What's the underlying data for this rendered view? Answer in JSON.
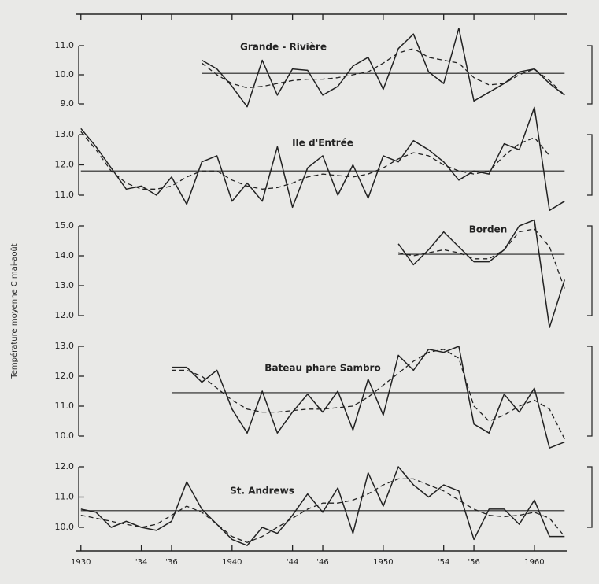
{
  "chart_data": [
    {
      "type": "line",
      "title": "Grande - Rivière",
      "xlim": [
        1929.7,
        1962.4
      ],
      "ylim": [
        9,
        11
      ],
      "yticks": [
        {
          "value": 9,
          "label": "9.0"
        },
        {
          "value": 10,
          "label": "10.0"
        },
        {
          "value": 11,
          "label": "11.0"
        }
      ],
      "x": [
        1938,
        1939,
        1940,
        1941,
        1942,
        1943,
        1944,
        1945,
        1946,
        1947,
        1948,
        1949,
        1950,
        1951,
        1952,
        1953,
        1954,
        1955,
        1956,
        1957,
        1958,
        1959,
        1960,
        1961,
        1962
      ],
      "series": [
        {
          "style": "solid",
          "color": "#222222",
          "values": [
            10.5,
            10.2,
            9.6,
            8.9,
            10.5,
            9.3,
            10.2,
            10.15,
            9.3,
            9.6,
            10.3,
            10.6,
            9.5,
            10.9,
            11.4,
            10.1,
            9.7,
            11.6,
            9.1,
            9.4,
            9.7,
            10.1,
            10.2,
            9.7,
            9.3
          ]
        },
        {
          "style": "dashed",
          "color": "#222222",
          "values": [
            10.4,
            10.0,
            9.7,
            9.55,
            9.6,
            9.7,
            9.8,
            9.85,
            9.85,
            9.9,
            10.0,
            10.1,
            10.4,
            10.75,
            10.9,
            10.6,
            10.5,
            10.4,
            9.9,
            9.65,
            9.7,
            10.0,
            10.2,
            9.8,
            9.3
          ]
        }
      ],
      "mean": 10.05
    },
    {
      "type": "line",
      "title": "Ile d'Entrée",
      "xlim": [
        1929.7,
        1962.4
      ],
      "ylim": [
        11,
        13
      ],
      "yticks": [
        {
          "value": 11,
          "label": "11.0"
        },
        {
          "value": 12,
          "label": "12.0"
        },
        {
          "value": 13,
          "label": "13.0"
        }
      ],
      "x": [
        1930,
        1931,
        1932,
        1933,
        1934,
        1935,
        1936,
        1937,
        1938,
        1939,
        1940,
        1941,
        1942,
        1943,
        1944,
        1945,
        1946,
        1947,
        1948,
        1949,
        1950,
        1951,
        1952,
        1953,
        1954,
        1955,
        1956,
        1957,
        1958,
        1959,
        1960,
        1961,
        1962
      ],
      "series": [
        {
          "style": "solid",
          "color": "#222222",
          "values": [
            13.2,
            12.6,
            11.9,
            11.2,
            11.3,
            11.0,
            11.6,
            10.7,
            12.1,
            12.3,
            10.8,
            11.4,
            10.8,
            12.6,
            10.6,
            11.9,
            12.3,
            11.0,
            12.0,
            10.9,
            12.3,
            12.1,
            12.8,
            12.5,
            12.1,
            11.5,
            11.8,
            11.7,
            12.7,
            12.5,
            13.9,
            10.5,
            10.8
          ]
        },
        {
          "style": "dashed",
          "color": "#222222",
          "values": [
            13.1,
            12.5,
            11.8,
            11.4,
            11.2,
            11.2,
            11.3,
            11.6,
            11.8,
            11.8,
            11.5,
            11.3,
            11.2,
            11.25,
            11.4,
            11.6,
            11.7,
            11.65,
            11.6,
            11.7,
            11.9,
            12.2,
            12.4,
            12.3,
            12.0,
            11.8,
            11.7,
            11.8,
            12.3,
            12.7,
            12.9,
            12.3,
            null
          ]
        }
      ],
      "mean": 11.8
    },
    {
      "type": "line",
      "title": "Borden",
      "ylabel": "Température moyenne C mai-août",
      "xlim": [
        1929.7,
        1962.4
      ],
      "ylim": [
        12,
        15
      ],
      "yticks": [
        {
          "value": 12,
          "label": "12.0"
        },
        {
          "value": 13,
          "label": "13.0"
        },
        {
          "value": 14,
          "label": "14.0"
        },
        {
          "value": 15,
          "label": "15.0"
        }
      ],
      "x": [
        1951,
        1952,
        1953,
        1954,
        1955,
        1956,
        1957,
        1958,
        1959,
        1960,
        1961,
        1962
      ],
      "series": [
        {
          "style": "solid",
          "color": "#222222",
          "values": [
            14.4,
            13.7,
            14.2,
            14.8,
            14.3,
            13.8,
            13.8,
            14.2,
            15.0,
            15.2,
            11.6,
            13.2
          ]
        },
        {
          "style": "dashed",
          "color": "#222222",
          "values": [
            14.1,
            14.0,
            14.1,
            14.2,
            14.1,
            13.9,
            13.9,
            14.2,
            14.8,
            14.9,
            14.3,
            12.9
          ]
        }
      ],
      "mean": 14.05
    },
    {
      "type": "line",
      "title": "Bateau phare Sambro",
      "xlim": [
        1929.7,
        1962.4
      ],
      "ylim": [
        10,
        13
      ],
      "yticks": [
        {
          "value": 10,
          "label": "10.0"
        },
        {
          "value": 11,
          "label": "11.0"
        },
        {
          "value": 12,
          "label": "12.0"
        },
        {
          "value": 13,
          "label": "13.0"
        }
      ],
      "x": [
        1936,
        1937,
        1938,
        1939,
        1940,
        1941,
        1942,
        1943,
        1944,
        1945,
        1946,
        1947,
        1948,
        1949,
        1950,
        1951,
        1952,
        1953,
        1954,
        1955,
        1956,
        1957,
        1958,
        1959,
        1960,
        1961,
        1962
      ],
      "series": [
        {
          "style": "solid",
          "color": "#222222",
          "values": [
            12.3,
            12.3,
            11.8,
            12.2,
            10.9,
            10.1,
            11.5,
            10.1,
            10.8,
            11.4,
            10.8,
            11.5,
            10.2,
            11.9,
            10.7,
            12.7,
            12.2,
            12.9,
            12.8,
            13.0,
            10.4,
            10.1,
            11.4,
            10.8,
            11.6,
            9.6,
            9.8
          ]
        },
        {
          "style": "dashed",
          "color": "#222222",
          "values": [
            12.2,
            12.2,
            12.0,
            11.6,
            11.2,
            10.9,
            10.8,
            10.8,
            10.85,
            10.9,
            10.9,
            10.95,
            11.0,
            11.3,
            11.7,
            12.1,
            12.5,
            12.8,
            12.9,
            12.6,
            11.0,
            10.5,
            10.7,
            11.0,
            11.2,
            10.9,
            9.9
          ]
        }
      ],
      "mean": 11.45
    },
    {
      "type": "line",
      "title": "St. Andrews",
      "xlim": [
        1929.7,
        1962.4
      ],
      "ylim": [
        10,
        12
      ],
      "yticks": [
        {
          "value": 10,
          "label": "10.0"
        },
        {
          "value": 11,
          "label": "11.0"
        },
        {
          "value": 12,
          "label": "12.0"
        }
      ],
      "xticks": [
        1930,
        {
          "value": 1934,
          "label": "'34"
        },
        {
          "value": 1936,
          "label": "'36"
        },
        1940,
        {
          "value": 1944,
          "label": "'44"
        },
        {
          "value": 1946,
          "label": "'46"
        },
        1950,
        {
          "value": 1954,
          "label": "'54"
        },
        {
          "value": 1956,
          "label": "'56"
        },
        1960
      ],
      "x": [
        1930,
        1931,
        1932,
        1933,
        1934,
        1935,
        1936,
        1937,
        1938,
        1939,
        1940,
        1941,
        1942,
        1943,
        1944,
        1945,
        1946,
        1947,
        1948,
        1949,
        1950,
        1951,
        1952,
        1953,
        1954,
        1955,
        1956,
        1957,
        1958,
        1959,
        1960,
        1961,
        1962
      ],
      "series": [
        {
          "style": "solid",
          "color": "#222222",
          "values": [
            10.6,
            10.5,
            10.0,
            10.2,
            10.0,
            9.9,
            10.2,
            11.5,
            10.6,
            10.1,
            9.6,
            9.4,
            10.0,
            9.8,
            10.4,
            11.1,
            10.5,
            11.3,
            9.8,
            11.8,
            10.7,
            12.0,
            11.4,
            11.0,
            11.4,
            11.2,
            9.6,
            10.6,
            10.6,
            10.1,
            10.9,
            9.7,
            9.7
          ]
        },
        {
          "style": "dashed",
          "color": "#222222",
          "values": [
            10.4,
            10.3,
            10.2,
            10.1,
            10.0,
            10.1,
            10.4,
            10.7,
            10.5,
            10.1,
            9.7,
            9.5,
            9.7,
            10.0,
            10.3,
            10.6,
            10.8,
            10.8,
            10.9,
            11.1,
            11.4,
            11.6,
            11.6,
            11.4,
            11.2,
            10.9,
            10.6,
            10.4,
            10.35,
            10.4,
            10.5,
            10.3,
            9.7
          ]
        }
      ],
      "mean": 10.55
    }
  ]
}
